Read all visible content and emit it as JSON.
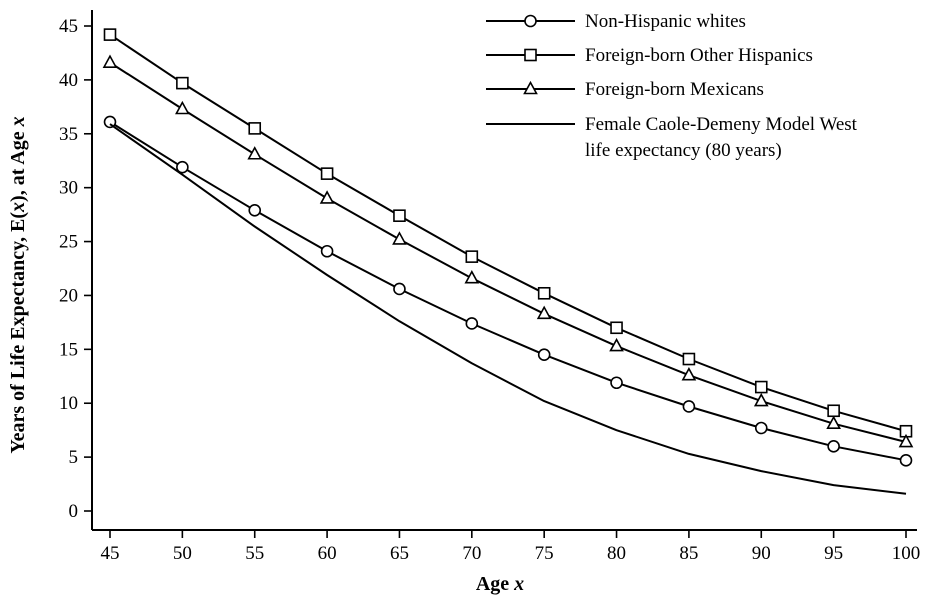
{
  "chart_data": {
    "type": "line",
    "xlabel": "Age x",
    "ylabel": "Years of Life Expectancy, E(x), at Age x",
    "x": [
      45,
      50,
      55,
      60,
      65,
      70,
      75,
      80,
      85,
      90,
      95,
      100
    ],
    "xlim": [
      45,
      100
    ],
    "ylim": [
      0,
      45
    ],
    "xticks": [
      45,
      50,
      55,
      60,
      65,
      70,
      75,
      80,
      85,
      90,
      95,
      100
    ],
    "yticks": [
      0,
      5,
      10,
      15,
      20,
      25,
      30,
      35,
      40,
      45
    ],
    "grid": false,
    "legend_position": "top-right",
    "series": [
      {
        "name": "Non-Hispanic whites",
        "marker": "circle",
        "values": [
          36.1,
          31.9,
          27.9,
          24.1,
          20.6,
          17.4,
          14.5,
          11.9,
          9.7,
          7.7,
          6.0,
          4.7
        ]
      },
      {
        "name": "Foreign-born Other Hispanics",
        "marker": "square",
        "values": [
          44.2,
          39.7,
          35.5,
          31.3,
          27.4,
          23.6,
          20.2,
          17.0,
          14.1,
          11.5,
          9.3,
          7.4
        ]
      },
      {
        "name": "Foreign-born Mexicans",
        "marker": "triangle",
        "values": [
          41.6,
          37.3,
          33.1,
          29.0,
          25.2,
          21.6,
          18.3,
          15.3,
          12.6,
          10.2,
          8.1,
          6.4
        ]
      },
      {
        "name": "Female Caole-Demeny Model West life expectancy (80 years)",
        "name_lines": [
          "Female Caole-Demeny Model West",
          "life expectancy (80 years)"
        ],
        "marker": "none",
        "values": [
          35.9,
          31.2,
          26.4,
          21.9,
          17.6,
          13.7,
          10.2,
          7.5,
          5.3,
          3.7,
          2.4,
          1.6
        ]
      }
    ]
  }
}
